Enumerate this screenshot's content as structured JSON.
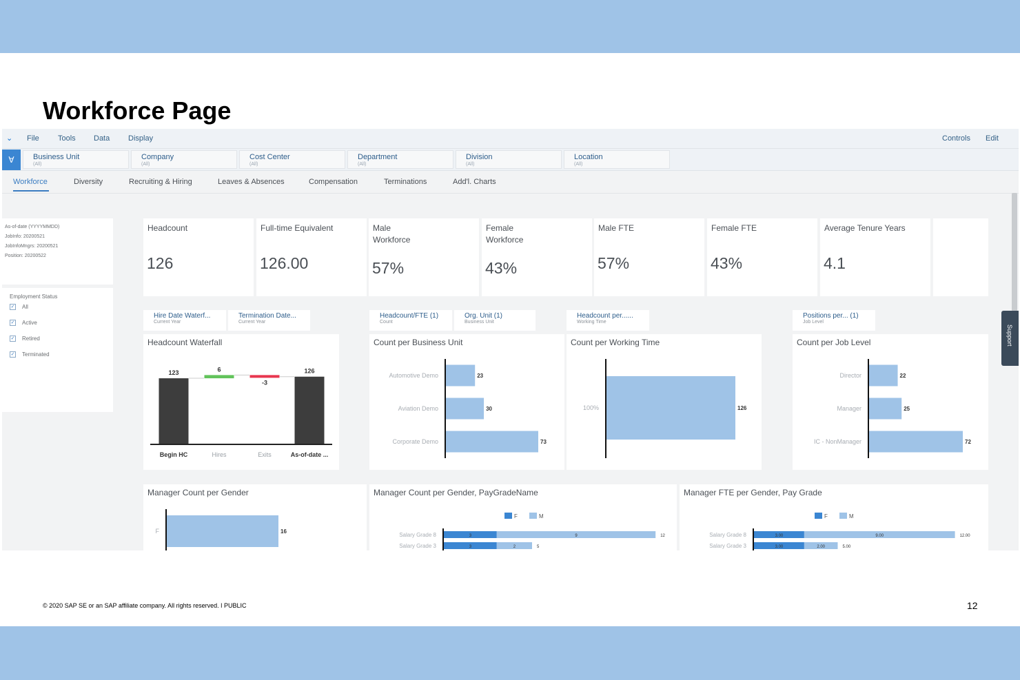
{
  "slide": {
    "title": "Workforce Page",
    "footer": "© 2020 SAP SE or an SAP affiliate company. All rights reserved.  ǀ  PUBLIC",
    "page_number": "12"
  },
  "colors": {
    "band": "#9fc3e7",
    "bar_light": "#9fc3e7",
    "bar_dark": "#3d3d3d",
    "bar_blue": "#3b86d2",
    "up_green": "#62c35b",
    "down_red": "#e8374f"
  },
  "menu": {
    "chevron_icon": "chevron-down-icon",
    "items": [
      "File",
      "Tools",
      "Data",
      "Display"
    ],
    "right_items": [
      "Controls",
      "Edit"
    ]
  },
  "filters": {
    "icon": "filter-icon",
    "chips": [
      {
        "label": "Business Unit",
        "value": "(All)"
      },
      {
        "label": "Company",
        "value": "(All)"
      },
      {
        "label": "Cost Center",
        "value": "(All)"
      },
      {
        "label": "Department",
        "value": "(All)"
      },
      {
        "label": "Division",
        "value": "(All)"
      },
      {
        "label": "Location",
        "value": "(All)"
      }
    ]
  },
  "tabs": [
    "Workforce",
    "Diversity",
    "Recruiting & Hiring",
    "Leaves & Absences",
    "Compensation",
    "Terminations",
    "Add'l. Charts"
  ],
  "info": {
    "lines": [
      "As-of-date (YYYYMMDD)",
      "JobInfo: 20200521",
      "JobInfoMngrs: 20200521",
      "Position: 20200522"
    ]
  },
  "employment_status": {
    "title": "Employment Status",
    "options": [
      "All",
      "Active",
      "Retired",
      "Terminated"
    ]
  },
  "kpis": [
    {
      "label": "Headcount",
      "value": "126"
    },
    {
      "label": "Full-time Equivalent",
      "value": "126.00"
    },
    {
      "label": "Male Workforce",
      "value": "57%"
    },
    {
      "label": "Female Workforce",
      "value": "43%"
    },
    {
      "label": "Male FTE",
      "value": "57%"
    },
    {
      "label": "Female FTE",
      "value": "43%"
    },
    {
      "label": "Average Tenure Years",
      "value": "4.1"
    }
  ],
  "subheaders": [
    {
      "title": "Hire Date Waterf...",
      "sub": "Current Year"
    },
    {
      "title": "Termination Date...",
      "sub": "Current Year"
    },
    {
      "title": "Headcount/FTE (1)",
      "sub": "Count"
    },
    {
      "title": "Org. Unit (1)",
      "sub": "Business Unit"
    },
    {
      "title": "Headcount per......",
      "sub": "Working Time"
    },
    {
      "title": "Positions per... (1)",
      "sub": "Job Level"
    }
  ],
  "support_label": "Support",
  "chart_data": [
    {
      "type": "bar",
      "title": "Headcount Waterfall",
      "categories": [
        "Begin HC",
        "Hires",
        "Exits",
        "As-of-date ..."
      ],
      "values": [
        123,
        6,
        -3,
        126
      ],
      "labels": [
        "123",
        "6",
        "-3",
        "126"
      ]
    },
    {
      "type": "bar",
      "title": "Count per Business Unit",
      "orientation": "horizontal",
      "categories": [
        "Automotive Demo",
        "Aviation Demo",
        "Corporate Demo"
      ],
      "values": [
        23,
        30,
        73
      ]
    },
    {
      "type": "bar",
      "title": "Count per Working Time",
      "orientation": "horizontal",
      "categories": [
        "100%"
      ],
      "values": [
        126
      ]
    },
    {
      "type": "bar",
      "title": "Count per Job Level",
      "orientation": "horizontal",
      "categories": [
        "Director",
        "Manager",
        "IC - NonManager"
      ],
      "values": [
        22,
        25,
        72
      ]
    },
    {
      "type": "bar",
      "title": "Manager Count per Gender",
      "orientation": "horizontal",
      "categories": [
        "F"
      ],
      "values": [
        16
      ]
    },
    {
      "type": "bar",
      "title": "Manager Count per Gender, PayGradeName",
      "orientation": "horizontal",
      "stacked": true,
      "legend": [
        "F",
        "M"
      ],
      "categories": [
        "Salary Grade 8",
        "Salary Grade 3"
      ],
      "series": [
        {
          "name": "F",
          "values": [
            3,
            3
          ],
          "labels": [
            "3",
            "3"
          ]
        },
        {
          "name": "M",
          "values": [
            9,
            2
          ],
          "labels": [
            "9",
            "2"
          ]
        }
      ],
      "totals": [
        "12",
        "5"
      ]
    },
    {
      "type": "bar",
      "title": "Manager FTE per Gender, Pay Grade",
      "orientation": "horizontal",
      "stacked": true,
      "legend": [
        "F",
        "M"
      ],
      "categories": [
        "Salary Grade 8",
        "Salary Grade 3"
      ],
      "series": [
        {
          "name": "F",
          "values": [
            3,
            3
          ],
          "labels": [
            "3.00",
            "3.00"
          ]
        },
        {
          "name": "M",
          "values": [
            9,
            2
          ],
          "labels": [
            "9.00",
            "2.00"
          ]
        }
      ],
      "totals": [
        "12.00",
        "5.00"
      ]
    }
  ]
}
